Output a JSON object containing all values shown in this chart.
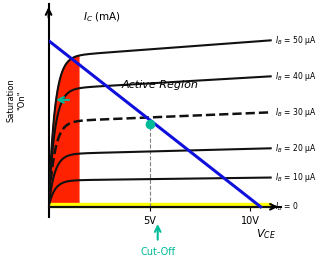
{
  "title": "",
  "xlabel": "V_{CE}",
  "ylabel": "I_C (mA)",
  "xlim": [
    0,
    11.5
  ],
  "ylim": [
    -0.05,
    1.0
  ],
  "ib_values": [
    0,
    10,
    20,
    30,
    40,
    50
  ],
  "ib_labels": [
    "I_B = 0",
    "I_B = 10 μA",
    "I_B = 20 μA",
    "I_B = 30 μA",
    "I_B = 40 μA",
    "I_B = 50 μA"
  ],
  "ic_saturation": [
    0.0,
    0.13,
    0.26,
    0.42,
    0.58,
    0.74
  ],
  "load_line_x": [
    0,
    10.5
  ],
  "load_line_y": [
    0.82,
    0.0
  ],
  "operating_point": [
    5.0,
    0.41
  ],
  "saturation_color": "#FF2200",
  "cutoff_color": "#FFFF00",
  "load_line_color": "#1010DD",
  "curve_color": "#111111",
  "active_region_text": "Active Region",
  "saturation_text": "Saturation\n\"On\"",
  "cutoff_text": "Cut-Off",
  "teal_color": "#00BB99",
  "background_color": "#FFFFFF"
}
